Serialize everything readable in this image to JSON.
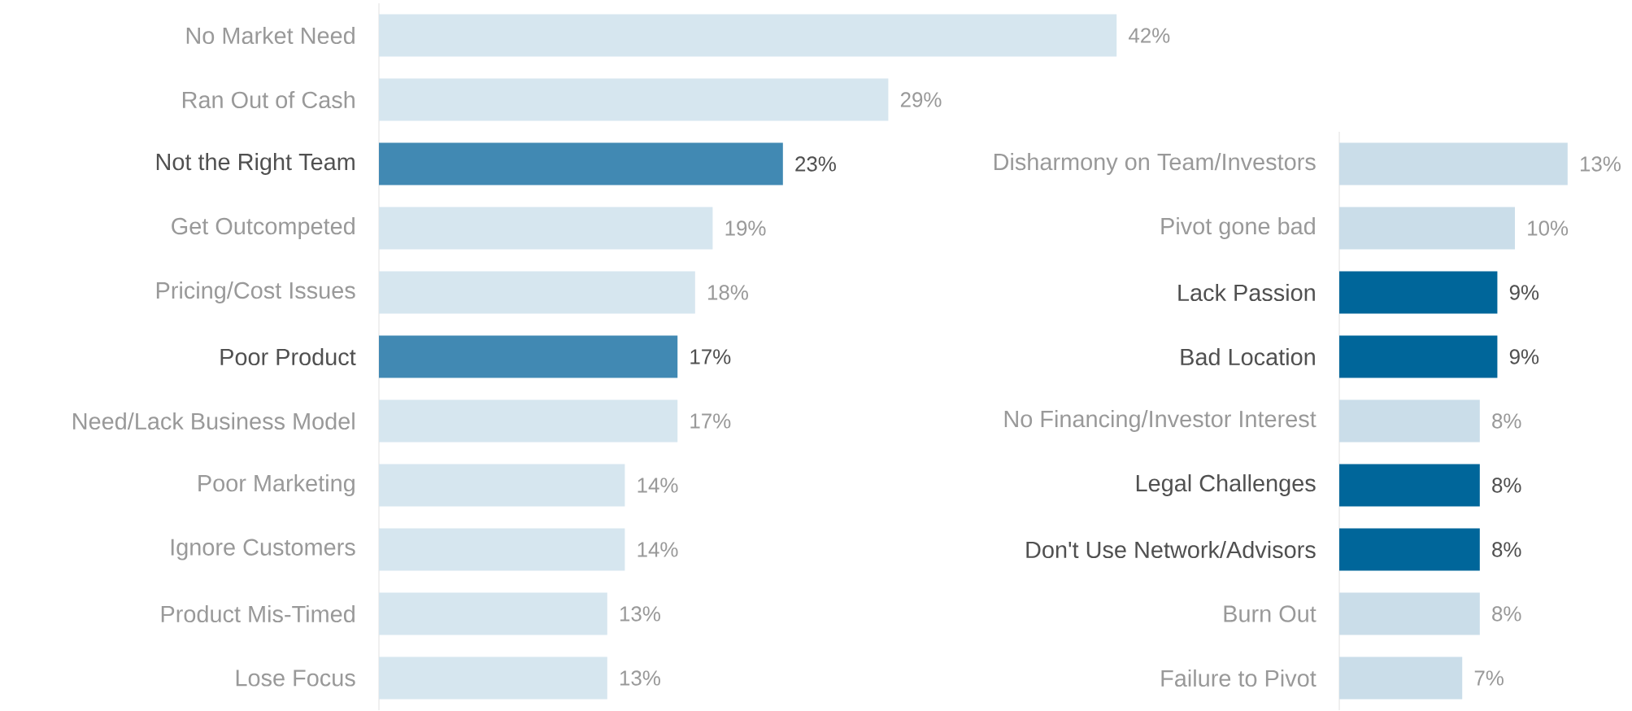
{
  "chart_data": [
    {
      "type": "bar",
      "orientation": "horizontal",
      "categories": [
        "No Market Need",
        "Ran Out of Cash",
        "Not the Right Team",
        "Get Outcompeted",
        "Pricing/Cost Issues",
        "Poor Product",
        "Need/Lack Business Model",
        "Poor Marketing",
        "Ignore Customers",
        "Product Mis-Timed",
        "Lose Focus"
      ],
      "values": [
        42,
        29,
        23,
        19,
        18,
        17,
        17,
        14,
        14,
        13,
        13
      ],
      "value_labels": [
        "42%",
        "29%",
        "23%",
        "19%",
        "18%",
        "17%",
        "17%",
        "14%",
        "14%",
        "13%",
        "13%"
      ],
      "colors": [
        "#d6e6ef",
        "#d6e6ef",
        "#4189b3",
        "#d6e6ef",
        "#d6e6ef",
        "#4189b3",
        "#d6e6ef",
        "#d6e6ef",
        "#d6e6ef",
        "#d6e6ef",
        "#d6e6ef"
      ]
    },
    {
      "type": "bar",
      "orientation": "horizontal",
      "categories": [
        "Disharmony on Team/Investors",
        "Pivot gone bad",
        "Lack Passion",
        "Bad Location",
        "No Financing/Investor Interest",
        "Legal Challenges",
        "Don't Use Network/Advisors",
        "Burn Out",
        "Failure to Pivot"
      ],
      "values": [
        13,
        10,
        9,
        9,
        8,
        8,
        8,
        8,
        7
      ],
      "value_labels": [
        "13%",
        "10%",
        "9%",
        "9%",
        "8%",
        "8%",
        "8%",
        "8%",
        "7%"
      ],
      "colors": [
        "#cadde9",
        "#cadde9",
        "#00669a",
        "#00669a",
        "#cadde9",
        "#00669a",
        "#00669a",
        "#cadde9",
        "#cadde9"
      ]
    }
  ]
}
